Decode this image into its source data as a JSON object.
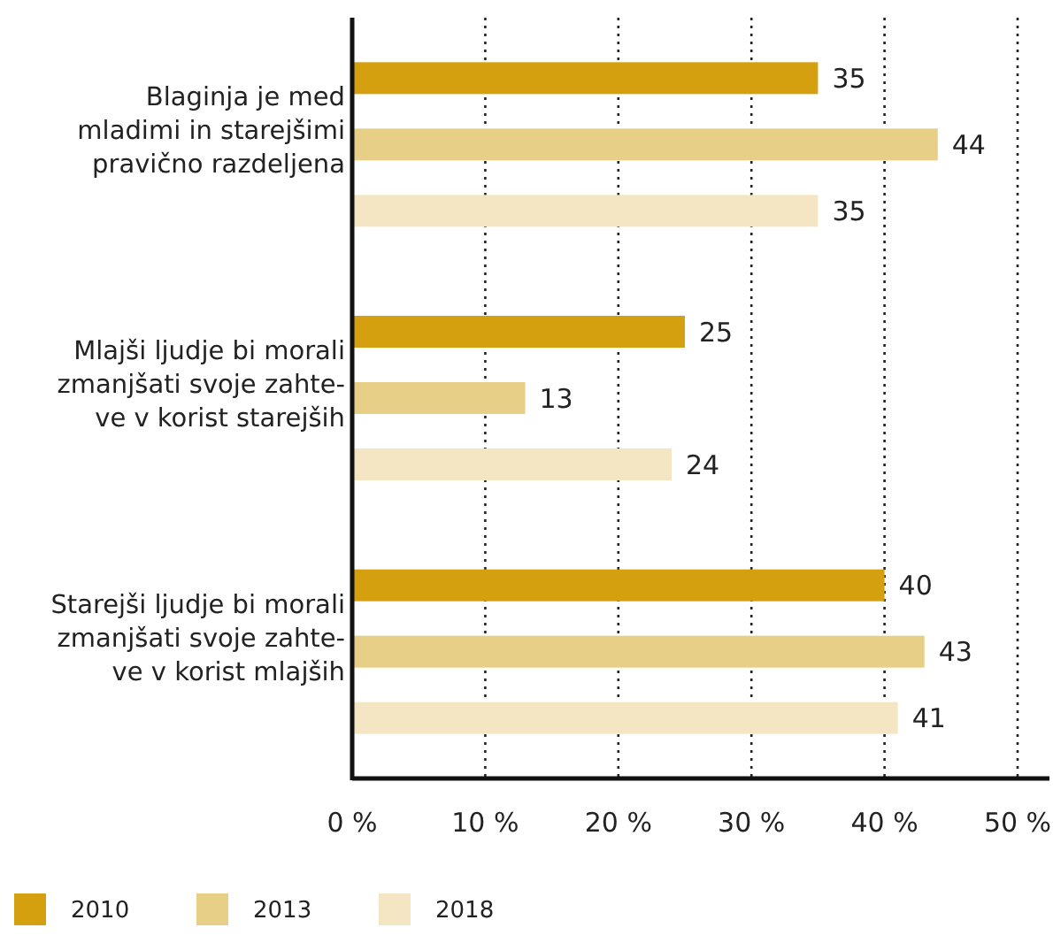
{
  "chart_data": {
    "type": "bar",
    "orientation": "horizontal",
    "categories": [
      "Blaginja je med\nmladimi in starejšimi\npravično razdeljena",
      "Mlajši ljudje bi morali\nzmanjšati svoje zahte-\nve v korist starejših",
      "Starejši ljudje bi morali\nzmanjšati svoje zahte-\nve v korist mlajših"
    ],
    "series": [
      {
        "name": "2010",
        "color": "#d4a010",
        "values": [
          35,
          25,
          40
        ]
      },
      {
        "name": "2013",
        "color": "#e8cf88",
        "values": [
          44,
          13,
          43
        ]
      },
      {
        "name": "2018",
        "color": "#f4e6c2",
        "values": [
          35,
          24,
          41
        ]
      }
    ],
    "xlim": [
      0,
      50
    ],
    "xticks": [
      {
        "value": 0,
        "label": "0 %"
      },
      {
        "value": 10,
        "label": "10 %"
      },
      {
        "value": 20,
        "label": "20 %"
      },
      {
        "value": 30,
        "label": "30 %"
      },
      {
        "value": 40,
        "label": "40 %"
      },
      {
        "value": 50,
        "label": "50 %"
      }
    ],
    "grid": "x",
    "data_labels": true,
    "legend": "bottom"
  }
}
